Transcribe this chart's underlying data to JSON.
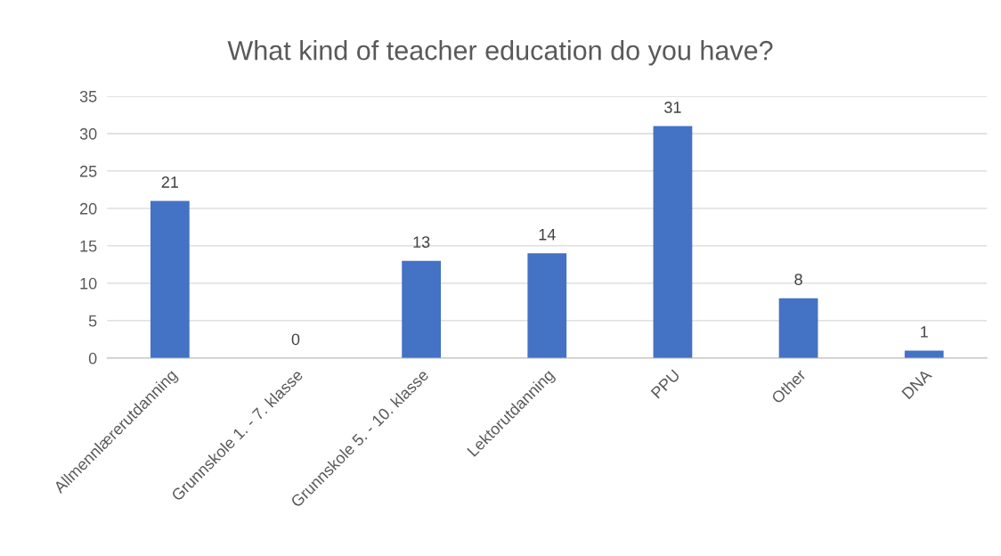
{
  "chart_data": {
    "type": "bar",
    "title": "What kind of teacher education do you have?",
    "categories": [
      "Allmennlærerutdanning",
      "Grunnskole 1. - 7. klasse",
      "Grunnskole 5. - 10. klasse",
      "Lektorutdanning",
      "PPU",
      "Other",
      "DNA"
    ],
    "values": [
      21,
      0,
      13,
      14,
      31,
      8,
      1
    ],
    "color": "#4472c4",
    "ylim": [
      0,
      35
    ],
    "yticks": [
      0,
      5,
      10,
      15,
      20,
      25,
      30,
      35
    ],
    "grid": "y",
    "data_labels": true
  }
}
